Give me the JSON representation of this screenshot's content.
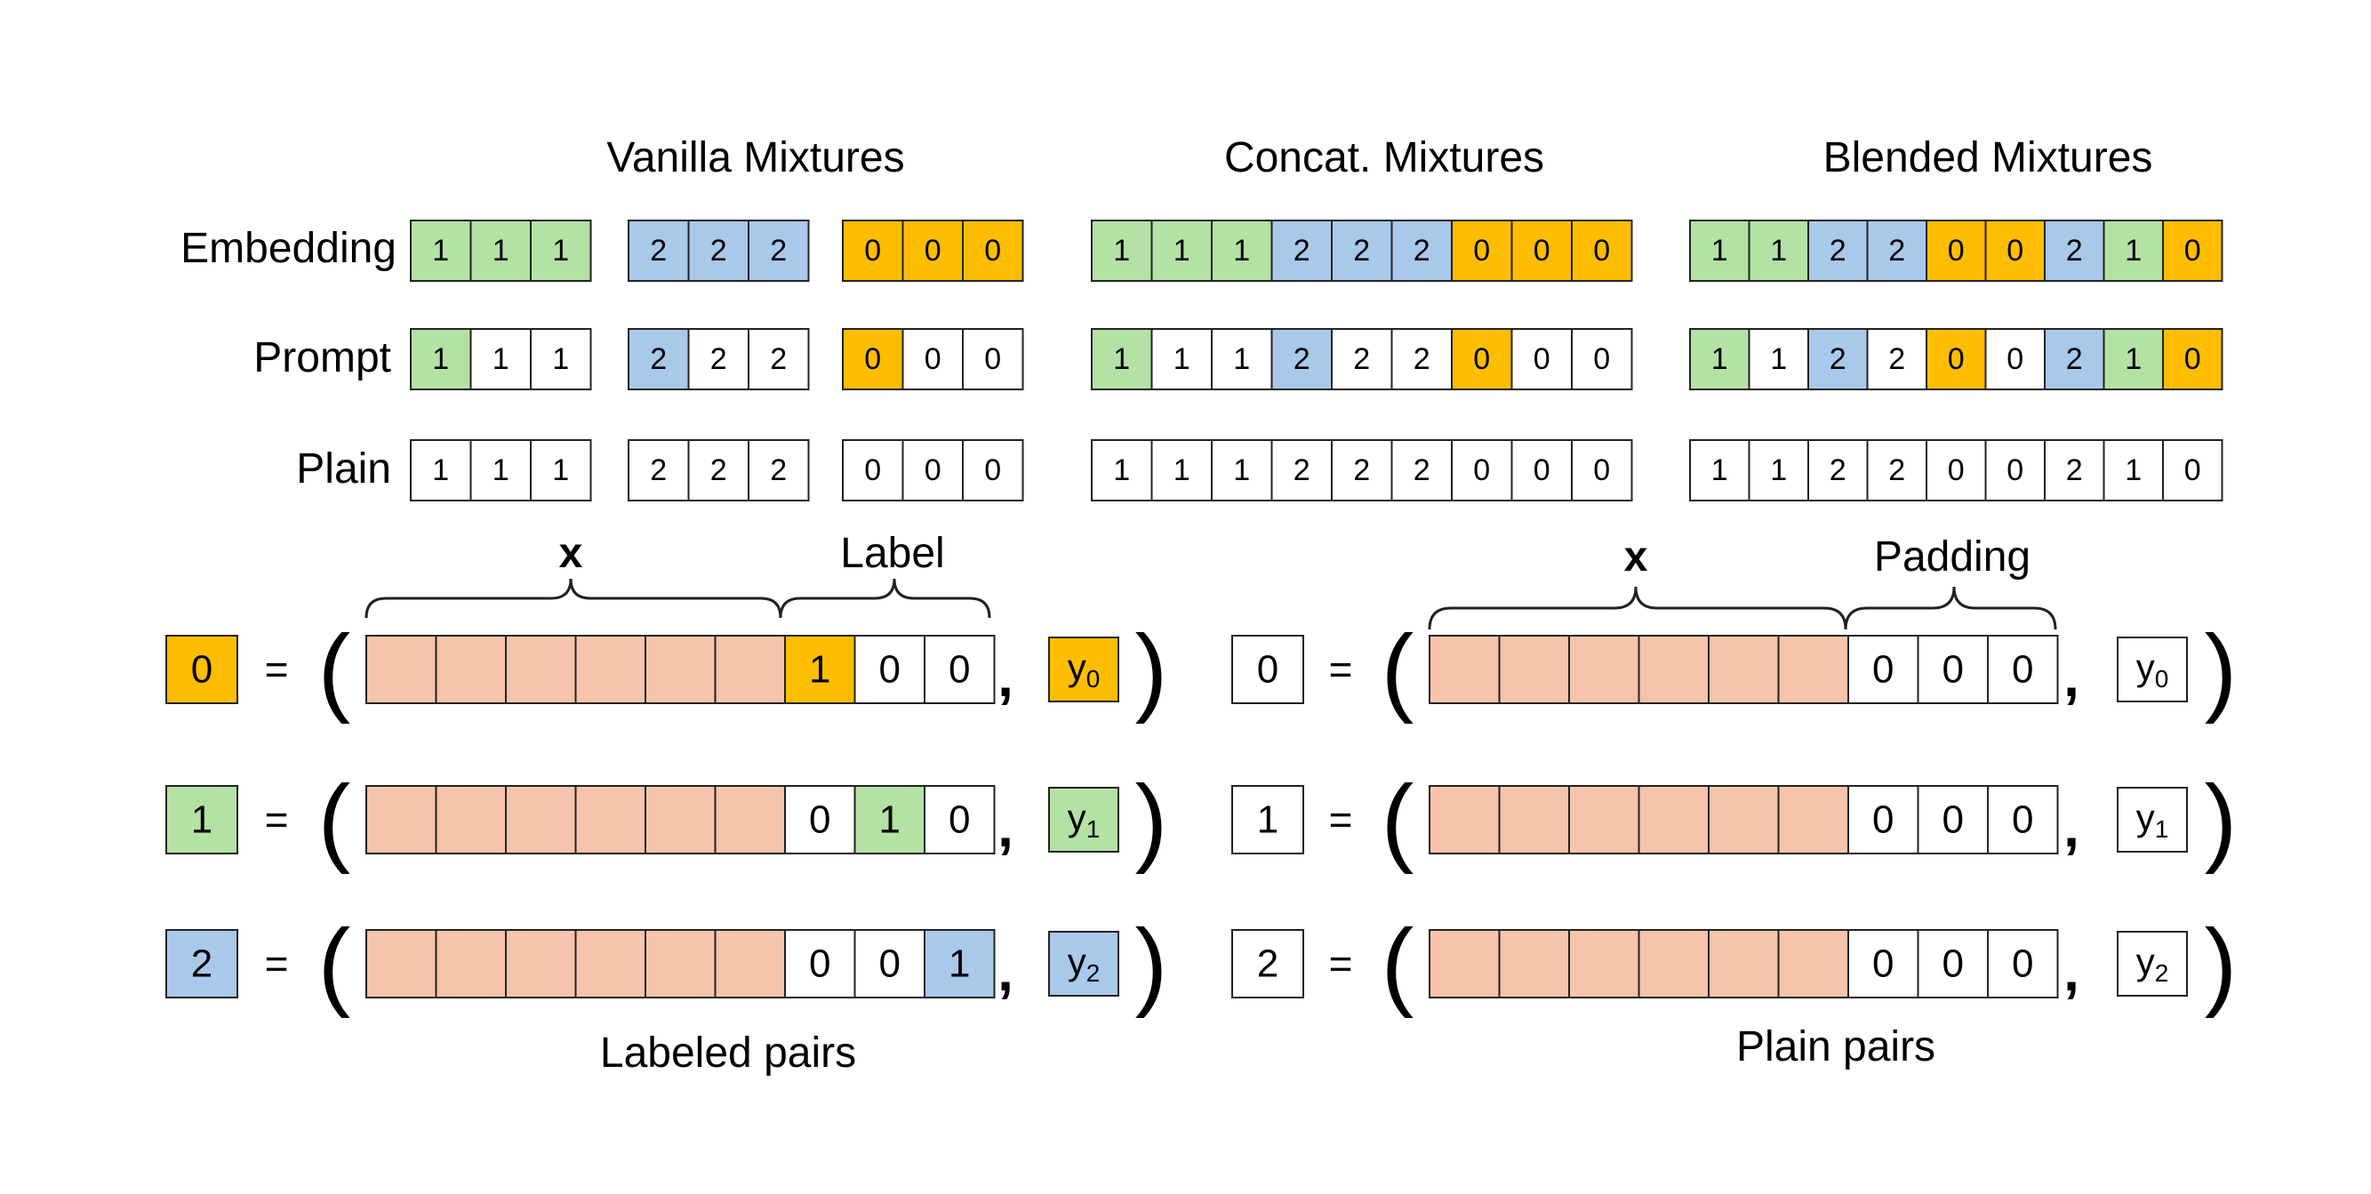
{
  "colors": {
    "green": "#b3e2a4",
    "blue": "#a9c9ea",
    "orange": "#fdbd00",
    "salmon": "#f5c4aa",
    "white": "#ffffff",
    "stroke": "#222222"
  },
  "headers": {
    "vanilla": "Vanilla Mixtures",
    "concat": "Concat. Mixtures",
    "blended": "Blended Mixtures"
  },
  "row_labels": {
    "embedding": "Embedding",
    "prompt": "Prompt",
    "plain": "Plain"
  },
  "mixtures": {
    "vanilla": {
      "embedding": [
        [
          {
            "v": "1",
            "c": "green"
          },
          {
            "v": "1",
            "c": "green"
          },
          {
            "v": "1",
            "c": "green"
          }
        ],
        [
          {
            "v": "2",
            "c": "blue"
          },
          {
            "v": "2",
            "c": "blue"
          },
          {
            "v": "2",
            "c": "blue"
          }
        ],
        [
          {
            "v": "0",
            "c": "orange"
          },
          {
            "v": "0",
            "c": "orange"
          },
          {
            "v": "0",
            "c": "orange"
          }
        ]
      ],
      "prompt": [
        [
          {
            "v": "1",
            "c": "green"
          },
          {
            "v": "1",
            "c": "white"
          },
          {
            "v": "1",
            "c": "white"
          }
        ],
        [
          {
            "v": "2",
            "c": "blue"
          },
          {
            "v": "2",
            "c": "white"
          },
          {
            "v": "2",
            "c": "white"
          }
        ],
        [
          {
            "v": "0",
            "c": "orange"
          },
          {
            "v": "0",
            "c": "white"
          },
          {
            "v": "0",
            "c": "white"
          }
        ]
      ],
      "plain": [
        [
          {
            "v": "1",
            "c": "white"
          },
          {
            "v": "1",
            "c": "white"
          },
          {
            "v": "1",
            "c": "white"
          }
        ],
        [
          {
            "v": "2",
            "c": "white"
          },
          {
            "v": "2",
            "c": "white"
          },
          {
            "v": "2",
            "c": "white"
          }
        ],
        [
          {
            "v": "0",
            "c": "white"
          },
          {
            "v": "0",
            "c": "white"
          },
          {
            "v": "0",
            "c": "white"
          }
        ]
      ]
    },
    "concat": {
      "embedding": [
        {
          "v": "1",
          "c": "green"
        },
        {
          "v": "1",
          "c": "green"
        },
        {
          "v": "1",
          "c": "green"
        },
        {
          "v": "2",
          "c": "blue"
        },
        {
          "v": "2",
          "c": "blue"
        },
        {
          "v": "2",
          "c": "blue"
        },
        {
          "v": "0",
          "c": "orange"
        },
        {
          "v": "0",
          "c": "orange"
        },
        {
          "v": "0",
          "c": "orange"
        }
      ],
      "prompt": [
        {
          "v": "1",
          "c": "green"
        },
        {
          "v": "1",
          "c": "white"
        },
        {
          "v": "1",
          "c": "white"
        },
        {
          "v": "2",
          "c": "blue"
        },
        {
          "v": "2",
          "c": "white"
        },
        {
          "v": "2",
          "c": "white"
        },
        {
          "v": "0",
          "c": "orange"
        },
        {
          "v": "0",
          "c": "white"
        },
        {
          "v": "0",
          "c": "white"
        }
      ],
      "plain": [
        {
          "v": "1",
          "c": "white"
        },
        {
          "v": "1",
          "c": "white"
        },
        {
          "v": "1",
          "c": "white"
        },
        {
          "v": "2",
          "c": "white"
        },
        {
          "v": "2",
          "c": "white"
        },
        {
          "v": "2",
          "c": "white"
        },
        {
          "v": "0",
          "c": "white"
        },
        {
          "v": "0",
          "c": "white"
        },
        {
          "v": "0",
          "c": "white"
        }
      ]
    },
    "blended": {
      "embedding": [
        {
          "v": "1",
          "c": "green"
        },
        {
          "v": "1",
          "c": "green"
        },
        {
          "v": "2",
          "c": "blue"
        },
        {
          "v": "2",
          "c": "blue"
        },
        {
          "v": "0",
          "c": "orange"
        },
        {
          "v": "0",
          "c": "orange"
        },
        {
          "v": "2",
          "c": "blue"
        },
        {
          "v": "1",
          "c": "green"
        },
        {
          "v": "0",
          "c": "orange"
        }
      ],
      "prompt": [
        {
          "v": "1",
          "c": "green"
        },
        {
          "v": "1",
          "c": "white"
        },
        {
          "v": "2",
          "c": "blue"
        },
        {
          "v": "2",
          "c": "white"
        },
        {
          "v": "0",
          "c": "orange"
        },
        {
          "v": "0",
          "c": "white"
        },
        {
          "v": "2",
          "c": "blue"
        },
        {
          "v": "1",
          "c": "green"
        },
        {
          "v": "0",
          "c": "orange"
        }
      ],
      "plain": [
        {
          "v": "1",
          "c": "white"
        },
        {
          "v": "1",
          "c": "white"
        },
        {
          "v": "2",
          "c": "white"
        },
        {
          "v": "2",
          "c": "white"
        },
        {
          "v": "0",
          "c": "white"
        },
        {
          "v": "0",
          "c": "white"
        },
        {
          "v": "2",
          "c": "white"
        },
        {
          "v": "1",
          "c": "white"
        },
        {
          "v": "0",
          "c": "white"
        }
      ]
    }
  },
  "labeled_pairs": {
    "caption": "Labeled pairs",
    "brace_x": "x",
    "brace_label": "Label",
    "rows": [
      {
        "key": "0",
        "key_color": "orange",
        "label": [
          {
            "v": "1",
            "c": "orange"
          },
          {
            "v": "0",
            "c": "white"
          },
          {
            "v": "0",
            "c": "white"
          }
        ],
        "y_base": "y",
        "y_sub": "0",
        "y_color": "orange"
      },
      {
        "key": "1",
        "key_color": "green",
        "label": [
          {
            "v": "0",
            "c": "white"
          },
          {
            "v": "1",
            "c": "green"
          },
          {
            "v": "0",
            "c": "white"
          }
        ],
        "y_base": "y",
        "y_sub": "1",
        "y_color": "green"
      },
      {
        "key": "2",
        "key_color": "blue",
        "label": [
          {
            "v": "0",
            "c": "white"
          },
          {
            "v": "0",
            "c": "white"
          },
          {
            "v": "1",
            "c": "blue"
          }
        ],
        "y_base": "y",
        "y_sub": "2",
        "y_color": "blue"
      }
    ]
  },
  "plain_pairs": {
    "caption": "Plain pairs",
    "brace_x": "x",
    "brace_label": "Padding",
    "rows": [
      {
        "key": "0",
        "key_color": "white",
        "label": [
          {
            "v": "0",
            "c": "white"
          },
          {
            "v": "0",
            "c": "white"
          },
          {
            "v": "0",
            "c": "white"
          }
        ],
        "y_base": "y",
        "y_sub": "0",
        "y_color": "white"
      },
      {
        "key": "1",
        "key_color": "white",
        "label": [
          {
            "v": "0",
            "c": "white"
          },
          {
            "v": "0",
            "c": "white"
          },
          {
            "v": "0",
            "c": "white"
          }
        ],
        "y_base": "y",
        "y_sub": "1",
        "y_color": "white"
      },
      {
        "key": "2",
        "key_color": "white",
        "label": [
          {
            "v": "0",
            "c": "white"
          },
          {
            "v": "0",
            "c": "white"
          },
          {
            "v": "0",
            "c": "white"
          }
        ],
        "y_base": "y",
        "y_sub": "2",
        "y_color": "white"
      }
    ]
  },
  "symbols": {
    "equals": "=",
    "open_paren": "(",
    "close_paren": ")",
    "comma": ","
  }
}
